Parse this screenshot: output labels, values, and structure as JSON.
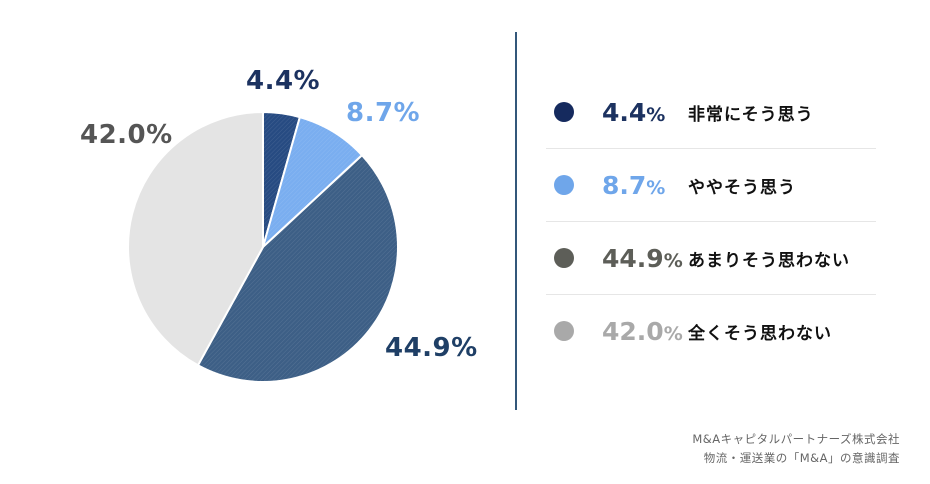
{
  "chart_data": {
    "type": "pie",
    "start_angle_deg": 0,
    "direction": "clockwise",
    "slices": [
      {
        "label": "非常にそう思う",
        "value": 4.4,
        "display": "4.4",
        "unit": "%",
        "color": "#274b82",
        "label_color": "#1c3260",
        "legend_dot": "#152a5e"
      },
      {
        "label": "ややそう思う",
        "value": 8.7,
        "display": "8.7",
        "unit": "%",
        "color": "#7aaef0",
        "label_color": "#6fa6ea",
        "legend_dot": "#6fa6ea"
      },
      {
        "label": "あまりそう思わない",
        "value": 44.9,
        "display": "44.9",
        "unit": "%",
        "color": "#3d5f86",
        "label_color": "#1f3f66",
        "legend_dot": "#5d5e58"
      },
      {
        "label": "全くそう思わない",
        "value": 42.0,
        "display": "42.0",
        "unit": "%",
        "color": "#e4e4e4",
        "label_color": "#555555",
        "legend_dot": "#a9a9a9"
      }
    ],
    "legend_value_colors": [
      "#1c3260",
      "#6fa6ea",
      "#5d5e58",
      "#a9a9a9"
    ]
  },
  "source": {
    "line1": "M&Aキャピタルパートナーズ株式会社",
    "line2": "物流・運送業の「M&A」の意識調査"
  }
}
